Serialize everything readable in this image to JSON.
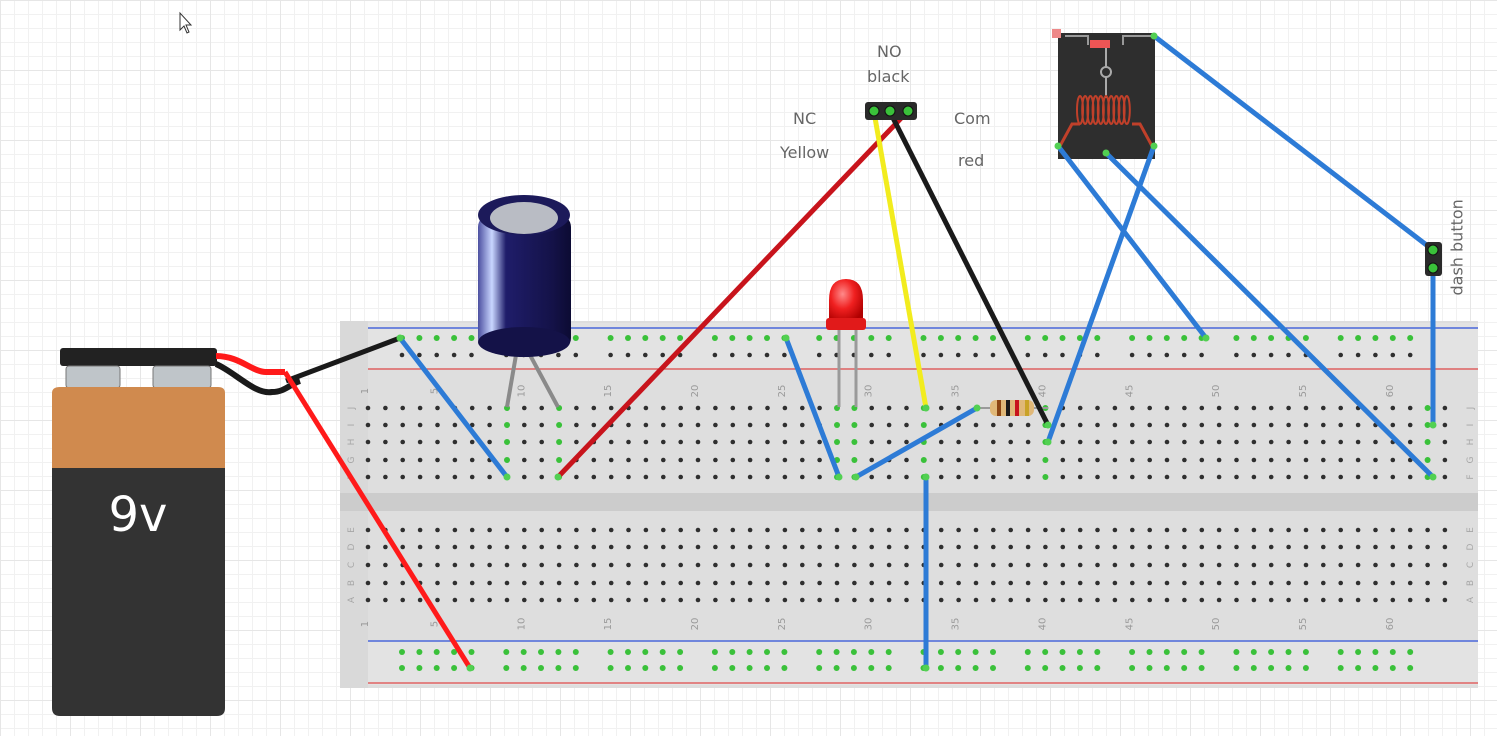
{
  "battery": {
    "label": "9v"
  },
  "relay_labels": {
    "no": "NO",
    "black": "black",
    "nc": "NC",
    "yellow": "Yellow",
    "com": "Com",
    "red": "red"
  },
  "dash_button": {
    "label": "dash button"
  },
  "breadboard": {
    "column_numbers": [
      "1",
      "5",
      "10",
      "15",
      "20",
      "25",
      "30",
      "35",
      "40",
      "45",
      "50",
      "55",
      "60"
    ],
    "rows_top": [
      "J",
      "I",
      "H",
      "G",
      "F"
    ],
    "rows_bottom": [
      "E",
      "D",
      "C",
      "B",
      "A"
    ]
  },
  "colors": {
    "wire_blue": "#2d7bd6",
    "wire_red_battery": "#ff1a1a",
    "wire_red_dark": "#c8141c",
    "wire_yellow": "#f2ec1e",
    "wire_black": "#1a1a1a",
    "rail_blue": "#2b4fd8",
    "rail_red": "#e04a4a",
    "hole_green": "#3ac13a",
    "battery_top": "#d08a4e",
    "battery_body": "#333333"
  },
  "icons": [
    "cursor-arrow-icon"
  ]
}
